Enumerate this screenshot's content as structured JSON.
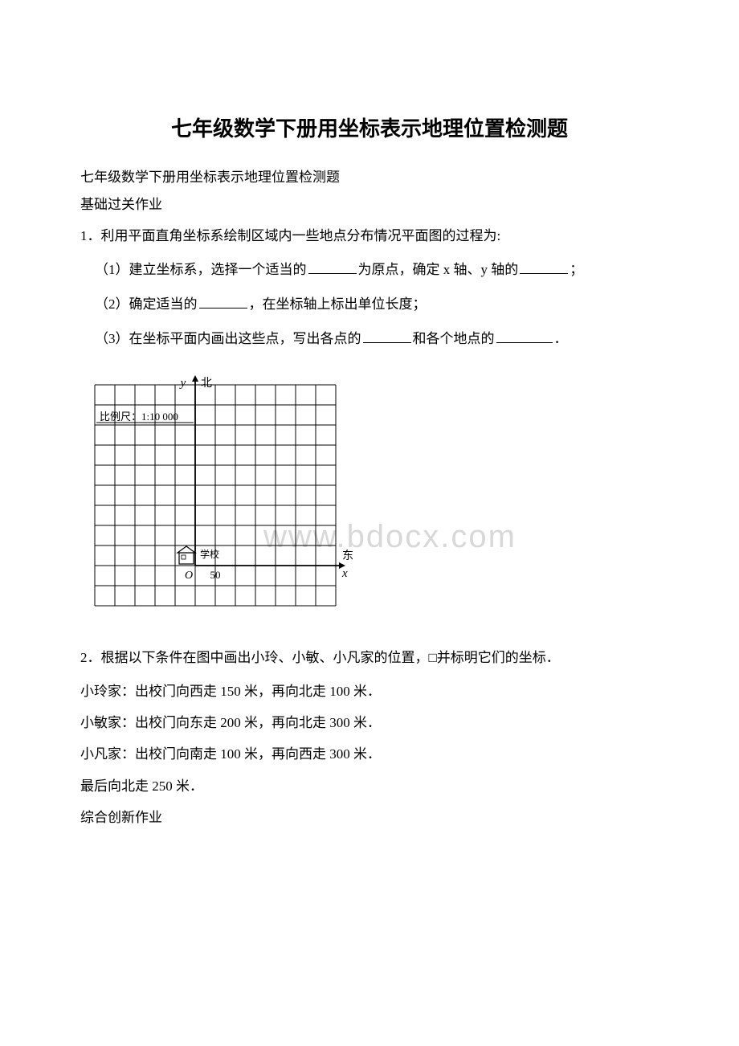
{
  "title": "七年级数学下册用坐标表示地理位置检测题",
  "subtitle": "七年级数学下册用坐标表示地理位置检测题",
  "section1_label": "基础过关作业",
  "q1": {
    "stem": "1．利用平面直角坐标系绘制区域内一些地点分布情况平面图的过程为:",
    "sub1_pre": "（1）建立坐标系，选择一个适当的",
    "sub1_mid1": "为原点，确定 x 轴、y 轴的",
    "sub1_end": "；",
    "sub2_pre": "（2）确定适当的",
    "sub2_end": "，在坐标轴上标出单位长度；",
    "sub3_pre": "（3）在坐标平面内画出这些点，写出各点的",
    "sub3_mid": "和各个地点的",
    "sub3_end": "．"
  },
  "chart": {
    "scale_label": "比例尺：1:10 000",
    "y_label": "y",
    "north_label": "北",
    "east_label": "东",
    "x_label": "x",
    "origin_label": "O",
    "first_tick": "50",
    "school_label": "学校",
    "grid": {
      "cell_size": 25,
      "cols": 12,
      "rows": 11,
      "origin_col": 5,
      "origin_row": 9,
      "line_color": "#000000",
      "line_width": 1,
      "background": "#ffffff"
    }
  },
  "q2": {
    "stem": "2．根据以下条件在图中画出小玲、小敏、小凡家的位置，□并标明它们的坐标．",
    "line1": "小玲家：出校门向西走 150 米，再向北走 100 米．",
    "line2": "小敏家：出校门向东走 200 米，再向北走 300 米．",
    "line3": "小凡家：出校门向南走 100 米，再向西走 300 米．",
    "line4": "最后向北走 250 米．",
    "section2_label": "综合创新作业"
  },
  "watermark": "www.bdocx.com"
}
